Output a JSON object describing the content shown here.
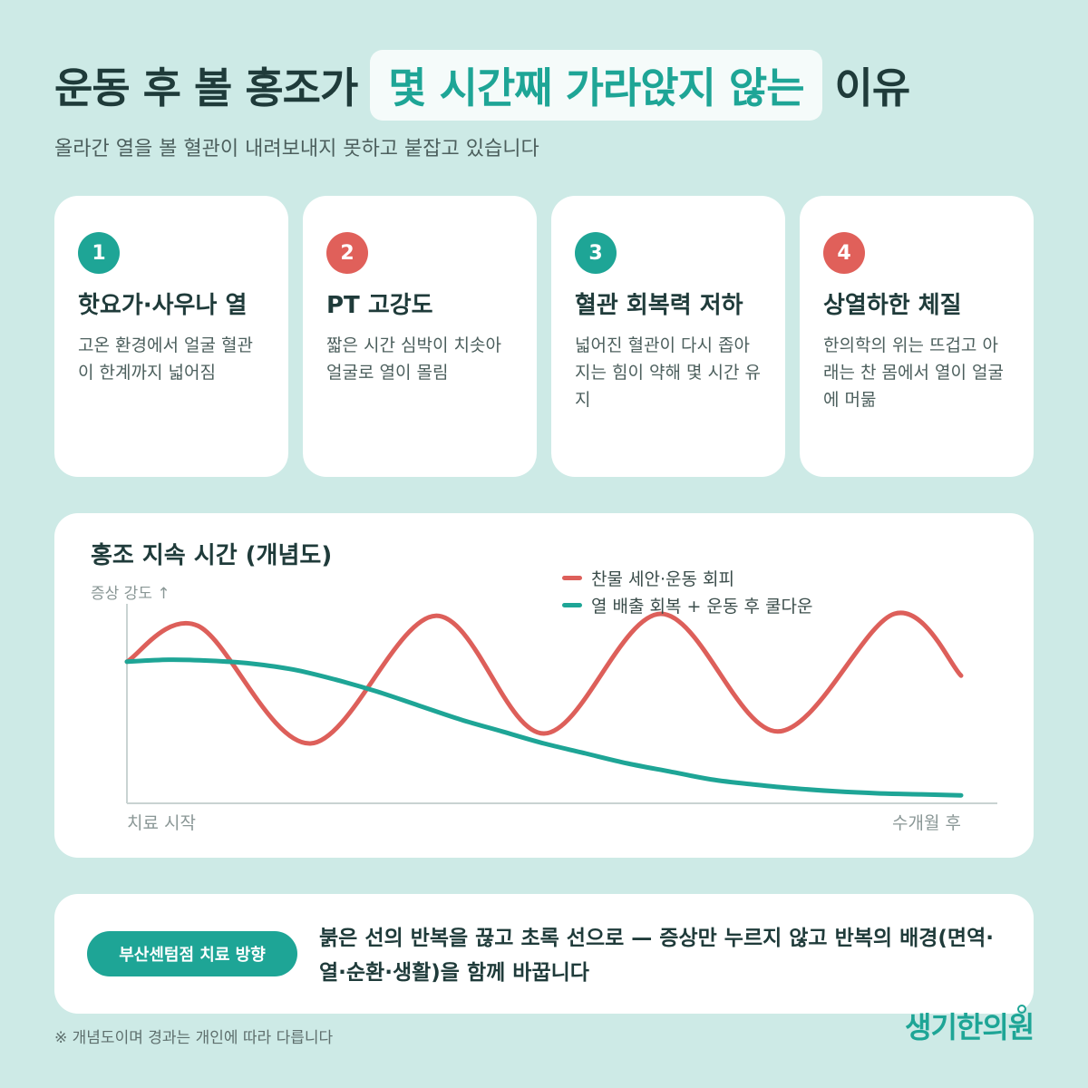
{
  "header": {
    "title_before": "운동 후 볼 홍조가",
    "title_highlight": "몇 시간째 가라앉지 않는",
    "title_after": "이유",
    "subtitle": "올라간 열을 볼 혈관이 내려보내지 못하고 붙잡고 있습니다"
  },
  "cards": [
    {
      "number": "1",
      "title": "핫요가·사우나 열",
      "desc": "고온 환경에서 얼굴 혈관이 한계까지 넓어짐",
      "color": "#1ea596"
    },
    {
      "number": "2",
      "title": "PT 고강도",
      "desc": "짧은 시간 심박이 치솟아 얼굴로 열이 몰림",
      "color": "#e0605a"
    },
    {
      "number": "3",
      "title": "혈관 회복력 저하",
      "desc": "넓어진 혈관이 다시 좁아지는 힘이 약해 몇 시간 유지",
      "color": "#1ea596"
    },
    {
      "number": "4",
      "title": "상열하한 체질",
      "desc": "한의학의 위는 뜨겁고 아래는 찬 몸에서 열이 얼굴에 머묾",
      "color": "#e0605a"
    }
  ],
  "chart": {
    "title": "홍조 지속 시간 (개념도)",
    "ylabel": "증상 강도 ↑",
    "x_start_label": "치료 시작",
    "x_end_label": "수개월 후"
  },
  "chart_data": {
    "type": "line",
    "title": "홍조 지속 시간 (개념도)",
    "ylabel": "증상 강도 ↑",
    "xlabel": "",
    "x_labels": [
      "치료 시작",
      "수개월 후"
    ],
    "xlim": [
      0,
      1
    ],
    "ylim": [
      0,
      1
    ],
    "grid": false,
    "legend_position": "top-right",
    "series": [
      {
        "name": "찬물 세안·운동 회피",
        "color": "#dd5f5a",
        "x": [
          0,
          0.085,
          0.22,
          0.37,
          0.5,
          0.64,
          0.78,
          0.92,
          1.0
        ],
        "y": [
          0.71,
          0.89,
          0.3,
          0.94,
          0.35,
          0.95,
          0.36,
          0.95,
          0.64
        ]
      },
      {
        "name": "열 배출 회복 + 운동 후 쿨다운",
        "color": "#1ea596",
        "x": [
          0,
          0.05,
          0.1,
          0.15,
          0.2,
          0.25,
          0.3,
          0.35,
          0.4,
          0.45,
          0.5,
          0.55,
          0.6,
          0.65,
          0.7,
          0.75,
          0.8,
          0.85,
          0.9,
          0.95,
          1.0
        ],
        "y": [
          0.71,
          0.72,
          0.715,
          0.7,
          0.67,
          0.62,
          0.56,
          0.49,
          0.42,
          0.36,
          0.3,
          0.25,
          0.2,
          0.16,
          0.12,
          0.095,
          0.075,
          0.06,
          0.05,
          0.045,
          0.04
        ]
      }
    ]
  },
  "bottom": {
    "pill_label": "부산센텀점 치료 방향",
    "message": "붉은 선의 반복을 끊고 초록 선으로 — 증상만 누르지 않고 반복의 배경(면역·열·순환·생활)을 함께 바꿉니다"
  },
  "footer": {
    "note": "※ 개념도이며 경과는 개인에 따라 다릅니다",
    "logo": "생기한의원"
  },
  "colors": {
    "background": "#cdeae6",
    "accent_teal": "#1ea596",
    "accent_red": "#e0605a",
    "text_dark": "#1f3b3a"
  }
}
